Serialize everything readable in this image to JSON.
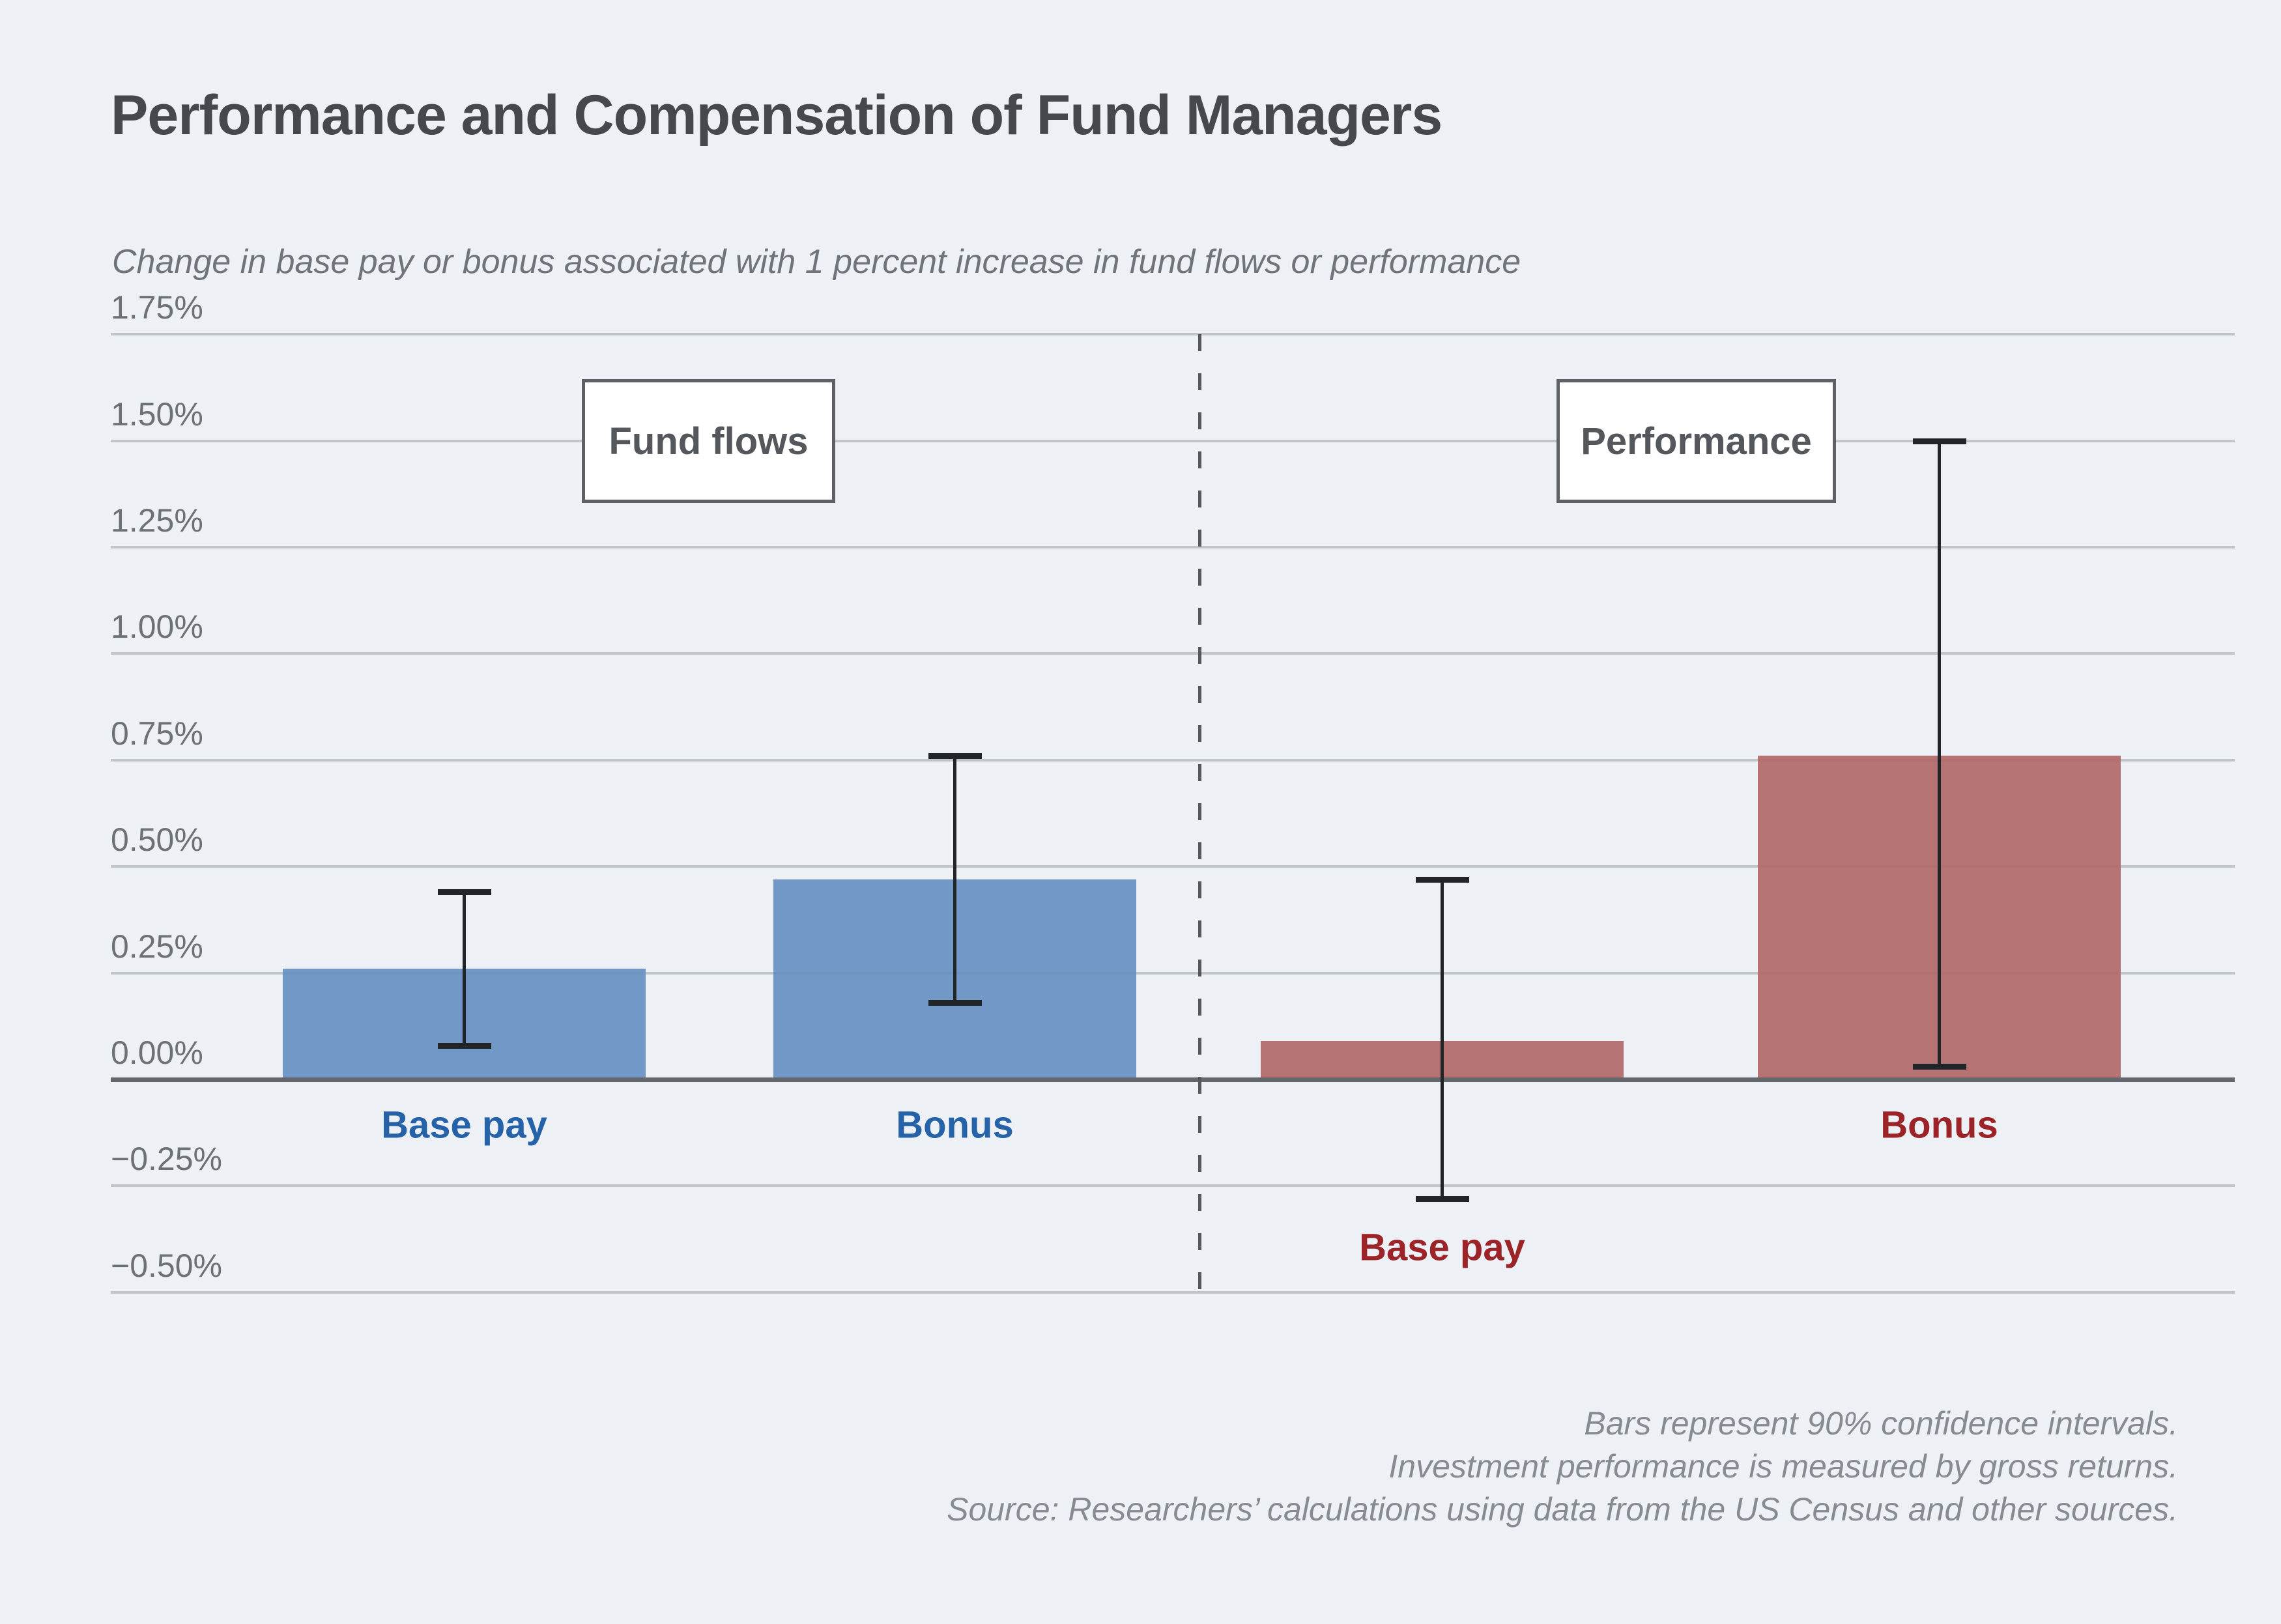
{
  "title": "Performance and Compensation of Fund Managers",
  "subtitle": "Change in base pay or bonus associated with 1 percent increase in fund flows or performance",
  "notes": [
    "Bars represent 90% confidence intervals.",
    "Investment performance is measured by gross returns.",
    "Source: Researchers’ calculations using data from the US Census and other sources."
  ],
  "colors": {
    "background": "#edf1f6",
    "fund_flows_bar": "#6791c2",
    "fund_flows_label": "#2562a8",
    "performance_bar": "#b16969",
    "performance_label": "#9c2428",
    "gridline": "#c0c5ca",
    "zero_line": "#63666a",
    "whisker": "#222528",
    "title_text": "#45494d",
    "note_text": "#868b91"
  },
  "chart_data": {
    "type": "bar",
    "title": "Performance and Compensation of Fund Managers",
    "ylabel": "Change in base pay or bonus associated with 1 percent increase in fund flows or performance",
    "ylim": [
      -0.5,
      1.75
    ],
    "y_tick_step": 0.25,
    "y_ticks": [
      "1.75%",
      "1.50%",
      "1.25%",
      "1.00%",
      "0.75%",
      "0.50%",
      "0.25%",
      "0.00%",
      "−0.25%",
      "−0.50%"
    ],
    "grid": true,
    "error_bars": "90% confidence intervals",
    "groups": [
      {
        "label": "Fund flows",
        "bar_color": "#6791c2",
        "label_color": "#2562a8",
        "bars": [
          {
            "category": "Base pay",
            "value": 0.26,
            "ci_low": 0.08,
            "ci_high": 0.44
          },
          {
            "category": "Bonus",
            "value": 0.47,
            "ci_low": 0.18,
            "ci_high": 0.76
          }
        ]
      },
      {
        "label": "Performance",
        "bar_color": "#b16969",
        "label_color": "#9c2428",
        "bars": [
          {
            "category": "Base pay",
            "value": 0.09,
            "ci_low": -0.28,
            "ci_high": 0.47
          },
          {
            "category": "Bonus",
            "value": 0.76,
            "ci_low": 0.03,
            "ci_high": 1.5
          }
        ]
      }
    ]
  }
}
